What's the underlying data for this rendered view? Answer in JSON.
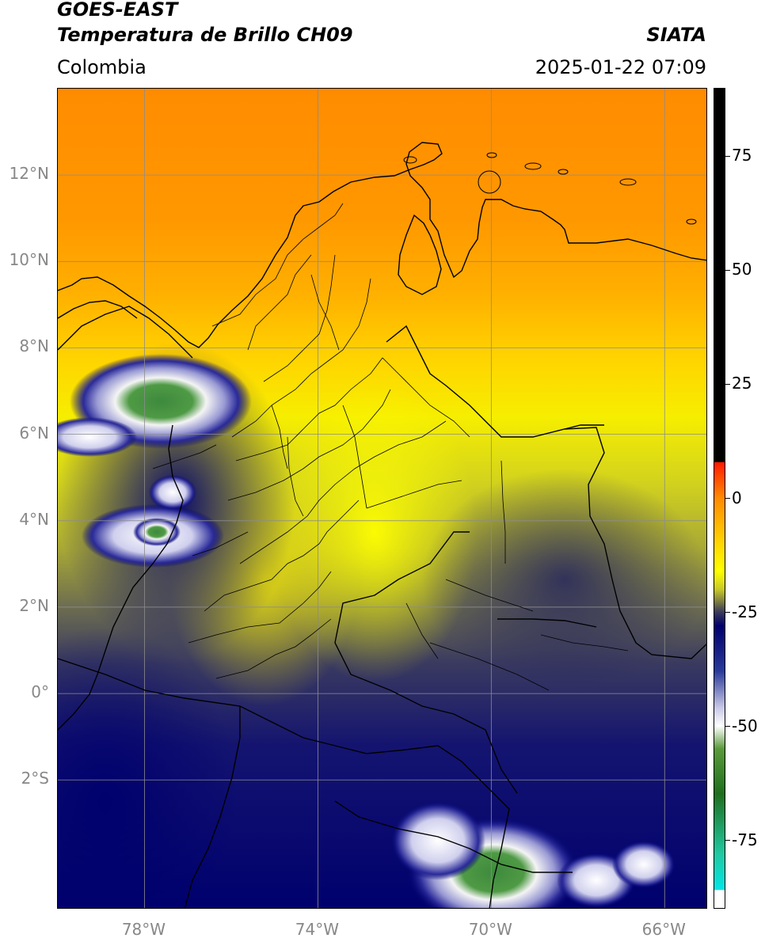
{
  "header": {
    "satellite": "GOES-EAST",
    "product": "Temperatura de Brillo CH09",
    "region": "Colombia",
    "agency": "SIATA",
    "datetime": "2025-01-22 07:09"
  },
  "map": {
    "lat_ticks": [
      "12°N",
      "10°N",
      "8°N",
      "6°N",
      "4°N",
      "2°N",
      "0°",
      "2°S"
    ],
    "lon_ticks": [
      "78°W",
      "74°W",
      "70°W",
      "66°W"
    ],
    "extent": {
      "lon_min": -80,
      "lon_max": -65,
      "lat_min": -5,
      "lat_max": 14
    },
    "colors": {
      "border": "#000000",
      "grid": "#8c8c8c"
    }
  },
  "colorbar": {
    "ticks": [
      "75",
      "50",
      "25",
      "0",
      "-25",
      "-50",
      "-75"
    ],
    "range": [
      -90,
      90
    ],
    "stops": [
      {
        "v": 90,
        "c": "#000000"
      },
      {
        "v": 8,
        "c": "#000000"
      },
      {
        "v": 7.9,
        "c": "#ff1a00"
      },
      {
        "v": 0,
        "c": "#ff8c00"
      },
      {
        "v": -10,
        "c": "#ffd700"
      },
      {
        "v": -16,
        "c": "#ffff00"
      },
      {
        "v": -20,
        "c": "#c8c828"
      },
      {
        "v": -25,
        "c": "#3a3a5a"
      },
      {
        "v": -28,
        "c": "#00006e"
      },
      {
        "v": -38,
        "c": "#2a3a9a"
      },
      {
        "v": -46,
        "c": "#c8c8e6"
      },
      {
        "v": -50,
        "c": "#ffffff"
      },
      {
        "v": -55,
        "c": "#5a9a3a"
      },
      {
        "v": -65,
        "c": "#1e6e1e"
      },
      {
        "v": -78,
        "c": "#20c8a0"
      },
      {
        "v": -86,
        "c": "#00e6e6"
      },
      {
        "v": -86.1,
        "c": "#ffffff"
      },
      {
        "v": -90,
        "c": "#ffffff"
      }
    ]
  }
}
